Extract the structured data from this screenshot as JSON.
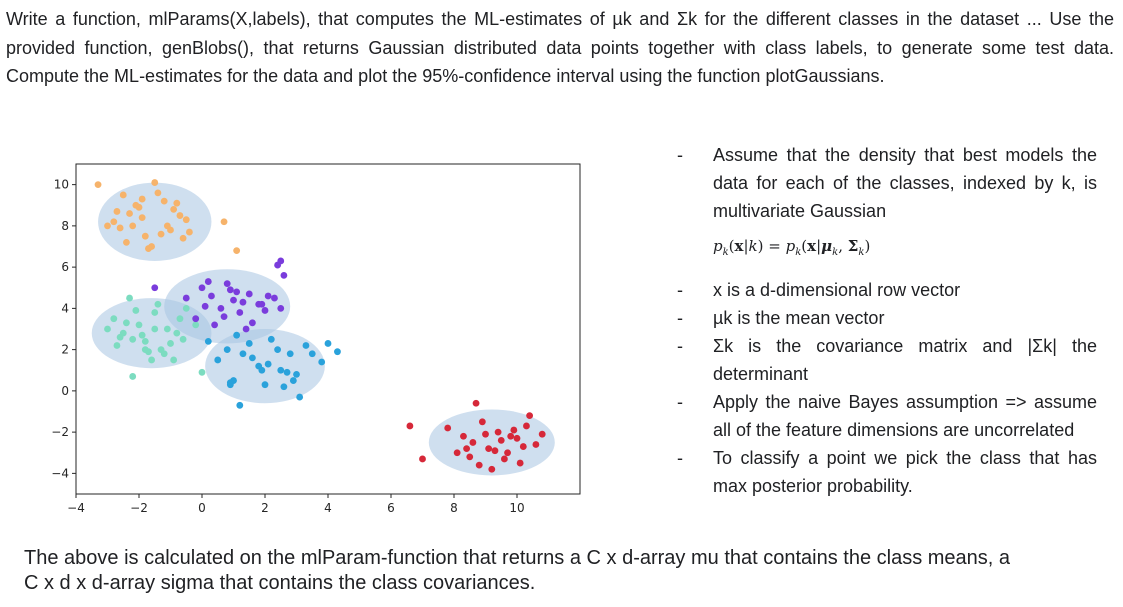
{
  "intro_text": "Write a function, mlParams(X,labels), that computes the ML-estimates of µk and Σk for the different classes in the dataset ... Use the provided function, genBlobs(), that returns Gaussian distributed data points together with class labels, to generate some test data. Compute the ML-estimates for the data and plot the 95%-confidence interval using the function plotGaussians.",
  "bullets": [
    "Assume that the density that best models the data for each of the classes, indexed by k, is multivariate Gaussian",
    "x is a d-dimensional row vector",
    "µk is the mean vector",
    "Σk is the covariance matrix and |Σk| the determinant",
    "Apply the naive Bayes assumption => assume all of the feature dimensions are uncorrelated",
    "To classify a point we pick the class that has max posterior probability."
  ],
  "bullet_marker": "-",
  "formula": {
    "lhs_p": "p",
    "k": "k",
    "x": "x",
    "bar": "|",
    "eq": "=",
    "mu": "μ",
    "sigma": "Σ"
  },
  "outro_text": "The above is calculated on the mlParam-function that returns a C x d-array mu that contains the class means, a C x d x d-array sigma that contains the class covariances.",
  "chart_data": {
    "type": "scatter",
    "title": "",
    "xlabel": "",
    "ylabel": "",
    "xlim": [
      -4,
      12
    ],
    "ylim": [
      -5,
      11
    ],
    "xticks": [
      -4,
      -2,
      0,
      2,
      4,
      6,
      8,
      10
    ],
    "yticks": [
      -4,
      -2,
      0,
      2,
      4,
      6,
      8,
      10
    ],
    "grid": false,
    "ellipse_color": "#a7c4e2",
    "series": [
      {
        "color": "#f6b36b",
        "ellipse": {
          "cx": -1.5,
          "cy": 8.2,
          "rx": 1.8,
          "ry": 1.9
        },
        "x": [
          -3.3,
          -2.5,
          -1.5,
          -2.0,
          -1.2,
          -0.7,
          -2.7,
          -2.2,
          -1.8,
          -1.0,
          -0.5,
          -2.4,
          -1.6,
          -1.9,
          -0.9,
          -2.8,
          -1.3,
          -0.6,
          0.7,
          1.1,
          -2.1,
          -1.4,
          -0.8,
          -2.6,
          -1.7,
          -1.1,
          -2.3,
          -0.4,
          -3.0,
          -1.9
        ],
        "y": [
          10.0,
          9.5,
          10.1,
          8.9,
          9.2,
          8.5,
          8.7,
          8.0,
          7.5,
          7.8,
          8.3,
          7.2,
          7.0,
          8.4,
          8.8,
          8.2,
          7.6,
          7.4,
          8.2,
          6.8,
          9.0,
          9.6,
          9.1,
          7.9,
          6.9,
          8.0,
          8.6,
          7.7,
          8.0,
          9.3
        ]
      },
      {
        "color": "#7cdcc0",
        "ellipse": {
          "cx": -1.6,
          "cy": 2.8,
          "rx": 1.9,
          "ry": 1.7
        },
        "x": [
          -3.0,
          -2.8,
          -2.5,
          -2.2,
          -2.0,
          -1.8,
          -1.5,
          -1.2,
          -1.0,
          -0.7,
          -0.5,
          -2.7,
          -2.3,
          -1.9,
          -1.6,
          -1.3,
          -1.1,
          -0.8,
          -2.1,
          -1.7,
          -1.4,
          -0.9,
          -2.4,
          -2.6,
          -0.6,
          -0.2,
          -2.2,
          -1.8,
          -1.5,
          0.0
        ],
        "y": [
          3.0,
          3.5,
          2.8,
          2.5,
          3.2,
          2.0,
          3.8,
          1.8,
          2.3,
          3.5,
          4.0,
          2.2,
          4.5,
          2.7,
          1.5,
          2.0,
          3.0,
          2.8,
          3.9,
          1.9,
          4.2,
          1.5,
          3.3,
          2.6,
          2.5,
          3.2,
          0.7,
          2.4,
          3.0,
          0.9
        ]
      },
      {
        "color": "#7a3cdc",
        "ellipse": {
          "cx": 0.8,
          "cy": 4.1,
          "rx": 2.0,
          "ry": 1.8
        },
        "x": [
          -0.5,
          0.0,
          0.3,
          0.6,
          0.8,
          1.0,
          1.2,
          1.5,
          1.8,
          2.0,
          2.3,
          2.5,
          -0.2,
          0.4,
          0.9,
          1.3,
          1.6,
          2.1,
          2.6,
          0.1,
          0.7,
          1.1,
          1.4,
          1.9,
          -1.5,
          0.2,
          2.4,
          2.5
        ],
        "y": [
          4.5,
          5.0,
          4.6,
          4.0,
          5.2,
          4.4,
          3.8,
          4.7,
          4.2,
          3.9,
          4.5,
          4.0,
          3.5,
          3.2,
          4.9,
          4.3,
          3.3,
          4.6,
          5.6,
          4.1,
          3.6,
          4.8,
          3.0,
          4.2,
          5.0,
          5.3,
          6.1,
          6.3
        ]
      },
      {
        "color": "#2aa2db",
        "ellipse": {
          "cx": 2.0,
          "cy": 1.2,
          "rx": 1.9,
          "ry": 1.8
        },
        "x": [
          0.5,
          0.8,
          1.0,
          1.3,
          1.5,
          1.8,
          2.0,
          2.2,
          2.5,
          2.8,
          3.0,
          3.3,
          0.9,
          1.6,
          2.4,
          2.9,
          1.2,
          1.9,
          2.6,
          3.5,
          4.3,
          4.0,
          1.1,
          0.2,
          2.1,
          2.7,
          3.8,
          0.9,
          3.1
        ],
        "y": [
          1.5,
          2.0,
          0.5,
          1.8,
          2.3,
          1.2,
          0.3,
          2.5,
          1.0,
          1.8,
          0.8,
          2.2,
          0.4,
          1.6,
          2.0,
          0.5,
          -0.7,
          1.0,
          0.2,
          1.8,
          1.9,
          2.3,
          2.7,
          2.4,
          1.3,
          0.9,
          1.4,
          0.3,
          -0.3
        ]
      },
      {
        "color": "#d62839",
        "ellipse": {
          "cx": 9.2,
          "cy": -2.5,
          "rx": 2.0,
          "ry": 1.6
        },
        "x": [
          7.8,
          8.3,
          8.6,
          8.9,
          9.1,
          9.4,
          9.7,
          10.0,
          10.3,
          10.6,
          8.5,
          8.8,
          9.0,
          9.3,
          9.6,
          9.9,
          10.2,
          7.0,
          6.6,
          10.8,
          8.7,
          9.5,
          10.1,
          9.2,
          9.8,
          8.4,
          8.1,
          10.4
        ],
        "y": [
          -1.8,
          -2.2,
          -2.5,
          -1.5,
          -2.8,
          -2.0,
          -3.0,
          -2.3,
          -1.7,
          -2.6,
          -3.2,
          -3.6,
          -2.1,
          -2.9,
          -3.3,
          -1.9,
          -2.7,
          -3.3,
          -1.7,
          -2.1,
          -0.6,
          -2.4,
          -3.5,
          -3.8,
          -2.2,
          -2.8,
          -3.0,
          -1.2
        ]
      }
    ]
  }
}
